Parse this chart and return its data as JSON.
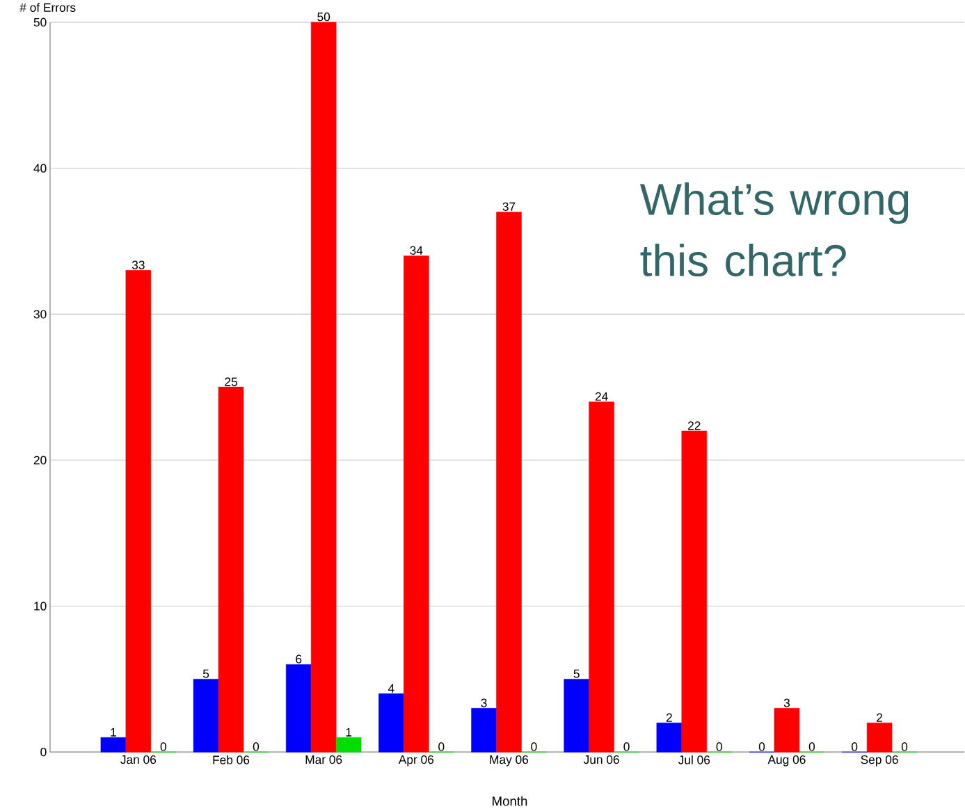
{
  "chart_data": {
    "type": "bar",
    "ylabel": "# of Errors",
    "xlabel": "Month",
    "categories": [
      "Jan 06",
      "Feb 06",
      "Mar 06",
      "Apr 06",
      "May 06",
      "Jun 06",
      "Jul 06",
      "Aug 06",
      "Sep 06"
    ],
    "series": [
      {
        "color": "#0000ff",
        "values": [
          1,
          5,
          6,
          4,
          3,
          5,
          2,
          0,
          0
        ]
      },
      {
        "color": "#ff0000",
        "values": [
          33,
          25,
          50,
          34,
          37,
          24,
          22,
          3,
          2
        ]
      },
      {
        "color": "#00dd00",
        "values": [
          0,
          0,
          1,
          0,
          0,
          0,
          0,
          0,
          0
        ]
      }
    ],
    "ylim": [
      0,
      50
    ],
    "yticks": [
      0,
      10,
      20,
      30,
      40,
      50
    ],
    "grid": "y",
    "data_labels": true,
    "annotations": [
      "What’s wrong this chart?"
    ]
  }
}
